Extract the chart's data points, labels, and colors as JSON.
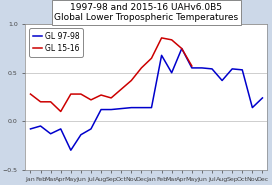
{
  "title_line1": "1997-98 and 2015-16 UAHv6.0B5",
  "title_line2": "Global Lower Tropospheric Temperatures",
  "legend_labels": [
    "GL 97-98",
    "GL 15-16"
  ],
  "x_labels": [
    "Jan",
    "Feb",
    "Mar",
    "Apr",
    "May",
    "Jun",
    "Jul",
    "Aug",
    "Sep",
    "Oct",
    "Nov",
    "Dec",
    "Jan",
    "Feb",
    "Mar",
    "Apr",
    "May",
    "Jun",
    "Jul",
    "Aug",
    "Sep",
    "Oct",
    "Nov",
    "Dec"
  ],
  "series_97_98": [
    -0.08,
    -0.05,
    -0.13,
    -0.08,
    -0.3,
    -0.14,
    -0.08,
    0.12,
    0.12,
    0.13,
    0.14,
    0.14,
    0.14,
    0.68,
    0.5,
    0.75,
    0.55,
    0.55,
    0.54,
    0.42,
    0.54,
    0.53,
    0.14,
    0.24
  ],
  "series_15_16": [
    0.28,
    0.2,
    0.2,
    0.1,
    0.28,
    0.28,
    0.22,
    0.27,
    0.24,
    0.33,
    0.42,
    0.55,
    0.65,
    0.86,
    0.84,
    0.75,
    0.57,
    null,
    null,
    null,
    null,
    null,
    null,
    null
  ],
  "color_97_98": "#0000cc",
  "color_15_16": "#cc0000",
  "ylim": [
    -0.5,
    1.0
  ],
  "yticks": [
    -0.5,
    0.0,
    0.5,
    1.0
  ],
  "background_color": "#ccd8e8",
  "plot_bg_color": "#ffffff",
  "title_fontsize": 6.5,
  "axis_fontsize": 4.5,
  "legend_fontsize": 5.5,
  "linewidth": 1.1
}
